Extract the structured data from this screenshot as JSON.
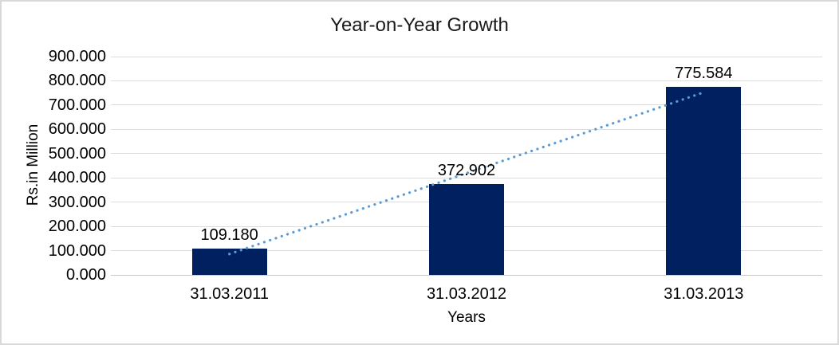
{
  "window": {
    "background": "#ffffff",
    "border_color": "#d9d9d9"
  },
  "chart_data": {
    "type": "bar",
    "title": "Year-on-Year Growth",
    "xlabel": "Years",
    "ylabel": "Rs.in Million",
    "categories": [
      "31.03.2011",
      "31.03.2012",
      "31.03.2013"
    ],
    "values": [
      109.18,
      372.902,
      775.584
    ],
    "data_labels": [
      "109.180",
      "372.902",
      "775.584"
    ],
    "ylim": [
      0,
      900
    ],
    "ytick_values": [
      0,
      100,
      200,
      300,
      400,
      500,
      600,
      700,
      800,
      900
    ],
    "ytick_labels": [
      "0.000",
      "100.000",
      "200.000",
      "300.000",
      "400.000",
      "500.000",
      "600.000",
      "700.000",
      "800.000",
      "900.000"
    ],
    "grid": true,
    "legend_position": "none",
    "bar_color": "#002060",
    "gridline_color": "#dcdcdc",
    "axis_line_color": "#c8c8c8",
    "trendline": {
      "type": "linear",
      "style": "dotted",
      "color": "#5b9bd5",
      "start_value": 86.0,
      "end_value": 752.4
    }
  }
}
